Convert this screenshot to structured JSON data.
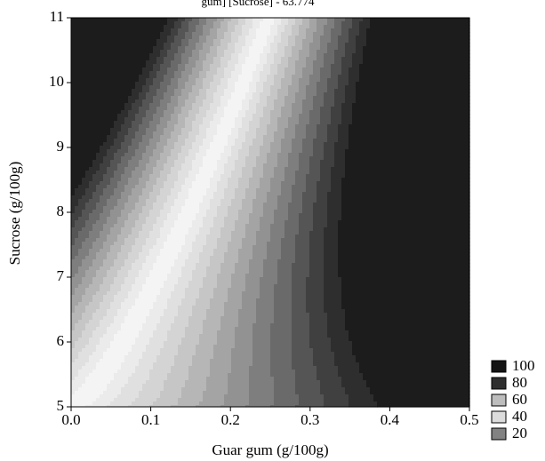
{
  "chart_data": {
    "type": "contour",
    "title": "gum] [Sucrose] - 63.774",
    "x_label": "Guar gum (g/100g)",
    "y_label": "Sucrose (g/100g)",
    "xlim": [
      0,
      0.5
    ],
    "xticks": [
      {
        "value": 0,
        "label": "0.0"
      },
      0.1,
      0.2,
      0.3,
      0.4,
      0.5
    ],
    "ylim": [
      5,
      11
    ],
    "yticks": [
      5,
      6,
      7,
      8,
      9,
      10,
      11
    ],
    "legend": [
      {
        "level": 100,
        "color": "#141414"
      },
      {
        "level": 80,
        "color": "#2e2e2e"
      },
      {
        "level": 60,
        "color": "#bdbdbd"
      },
      {
        "level": 40,
        "color": "#dcdcdc"
      },
      {
        "level": 20,
        "color": "#828282"
      }
    ],
    "contour_colors": [
      "#f4f4f4",
      "#ebebeb",
      "#e0e0e0",
      "#d4d4d4",
      "#c6c6c6",
      "#b6b6b6",
      "#a4a4a4",
      "#929292",
      "#7e7e7e",
      "#6a6a6a",
      "#555555",
      "#404040",
      "#2e2e2e",
      "#1c1c1c"
    ]
  }
}
